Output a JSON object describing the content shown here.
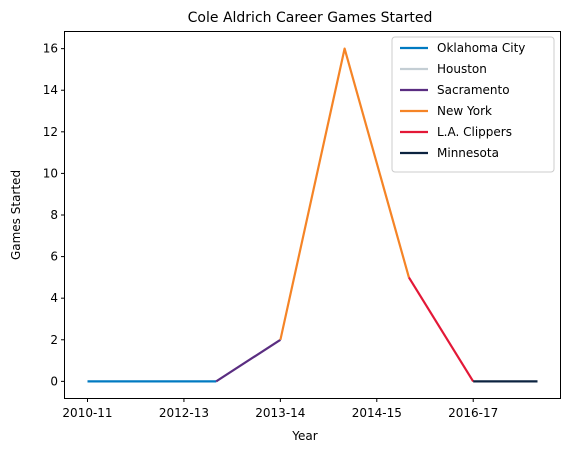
{
  "chart_data": {
    "type": "line",
    "title": "Cole Aldrich Career Games Started",
    "xlabel": "Year",
    "ylabel": "Games Started",
    "x_tick_labels": [
      "2010-11",
      "2012-13",
      "2013-14",
      "2014-15",
      "2016-17"
    ],
    "y_ticks": [
      0,
      2,
      4,
      6,
      8,
      10,
      12,
      14,
      16
    ],
    "ylim": [
      -0.8,
      16.8
    ],
    "grid": false,
    "legend_position": "top-right",
    "series": [
      {
        "name": "Oklahoma City",
        "color": "#007ac1",
        "points": [
          [
            0,
            0
          ],
          [
            1,
            0
          ],
          [
            2,
            0
          ]
        ]
      },
      {
        "name": "Houston",
        "color": "#c4ced4",
        "points": [
          [
            1,
            0
          ]
        ]
      },
      {
        "name": "Sacramento",
        "color": "#5a2d81",
        "points": [
          [
            2,
            0
          ],
          [
            3,
            2
          ]
        ]
      },
      {
        "name": "New York",
        "color": "#f58426",
        "points": [
          [
            3,
            2
          ],
          [
            4,
            16
          ],
          [
            5,
            5
          ]
        ]
      },
      {
        "name": "L.A. Clippers",
        "color": "#e31837",
        "points": [
          [
            5,
            5
          ],
          [
            6,
            0
          ]
        ]
      },
      {
        "name": "Minnesota",
        "color": "#0c2340",
        "points": [
          [
            6,
            0
          ],
          [
            7,
            0
          ]
        ]
      }
    ]
  }
}
